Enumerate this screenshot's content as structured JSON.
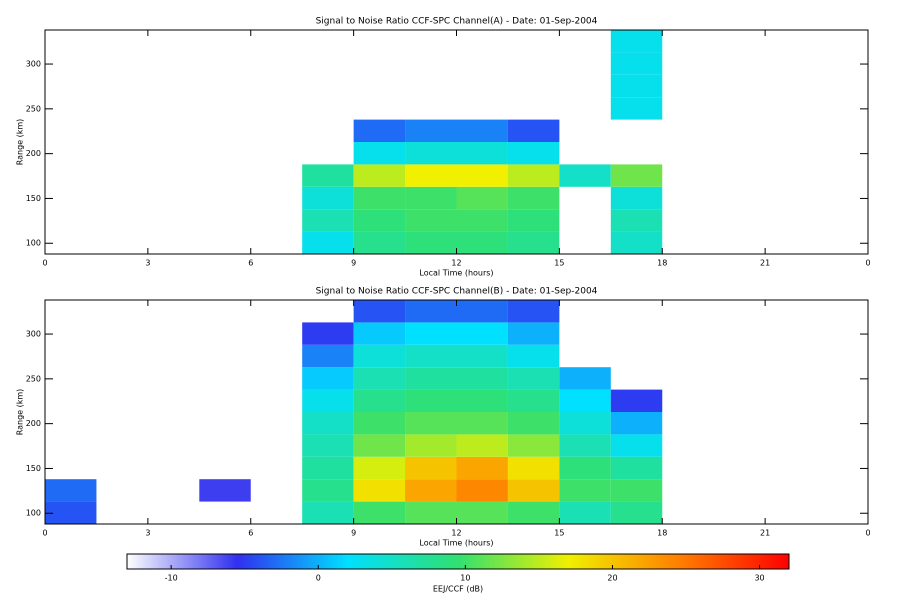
{
  "chart_data": [
    {
      "type": "heatmap",
      "title": "Signal to Noise Ratio CCF-SPC Channel(A) - Date: 01-Sep-2004",
      "xlabel": "Local Time (hours)",
      "ylabel": "Range (km)",
      "xlim": [
        0,
        24
      ],
      "ylim": [
        88,
        338
      ],
      "xticks": [
        0,
        3,
        6,
        9,
        12,
        15,
        18,
        21,
        {
          "value": 24,
          "label": "0"
        }
      ],
      "yticks": [
        100,
        150,
        200,
        250,
        300
      ],
      "xbins": [
        0,
        1.5,
        3,
        4.5,
        6,
        7.5,
        9,
        10.5,
        12,
        13.5,
        15,
        16.5,
        18,
        19.5,
        21,
        22.5,
        24
      ],
      "ybins": [
        88,
        113,
        138,
        163,
        188,
        213,
        238,
        263,
        288,
        313,
        338
      ],
      "z": [
        [
          null,
          null,
          null,
          null,
          null,
          3,
          8,
          9,
          9,
          8,
          null,
          5,
          null,
          null,
          null,
          null
        ],
        [
          null,
          null,
          null,
          null,
          null,
          6,
          9,
          10,
          10,
          9,
          null,
          6,
          null,
          null,
          null,
          null
        ],
        [
          null,
          null,
          null,
          null,
          null,
          4,
          10,
          10,
          11,
          10,
          null,
          4,
          null,
          null,
          null,
          null
        ],
        [
          null,
          null,
          null,
          null,
          null,
          7,
          15,
          17,
          17,
          15,
          5,
          12,
          null,
          null,
          null,
          null
        ],
        [
          null,
          null,
          null,
          null,
          null,
          null,
          3,
          4,
          4,
          3,
          null,
          null,
          null,
          null,
          null,
          null
        ],
        [
          null,
          null,
          null,
          null,
          null,
          null,
          -3,
          -2,
          -2,
          -4,
          null,
          null,
          null,
          null,
          null,
          null
        ],
        [
          null,
          null,
          null,
          null,
          null,
          null,
          null,
          null,
          null,
          null,
          null,
          3,
          null,
          null,
          null,
          null
        ],
        [
          null,
          null,
          null,
          null,
          null,
          null,
          null,
          null,
          null,
          null,
          null,
          3,
          null,
          null,
          null,
          null
        ],
        [
          null,
          null,
          null,
          null,
          null,
          null,
          null,
          null,
          null,
          null,
          null,
          3,
          null,
          null,
          null,
          null
        ],
        [
          null,
          null,
          null,
          null,
          null,
          null,
          null,
          null,
          null,
          null,
          null,
          3,
          null,
          null,
          null,
          null
        ]
      ]
    },
    {
      "type": "heatmap",
      "title": "Signal to Noise Ratio CCF-SPC Channel(B) - Date: 01-Sep-2004",
      "xlabel": "Local Time (hours)",
      "ylabel": "Range (km)",
      "xlim": [
        0,
        24
      ],
      "ylim": [
        88,
        338
      ],
      "xticks": [
        0,
        3,
        6,
        9,
        12,
        15,
        18,
        21,
        {
          "value": 24,
          "label": "0"
        }
      ],
      "yticks": [
        100,
        150,
        200,
        250,
        300
      ],
      "xbins": [
        0,
        1.5,
        3,
        4.5,
        6,
        7.5,
        9,
        10.5,
        12,
        13.5,
        15,
        16.5,
        18,
        19.5,
        21,
        22.5,
        24
      ],
      "ybins": [
        88,
        113,
        138,
        163,
        188,
        213,
        238,
        263,
        288,
        313,
        338
      ],
      "z": [
        [
          -4,
          null,
          null,
          null,
          null,
          6,
          10,
          11,
          11,
          10,
          6,
          8,
          null,
          null,
          null,
          null
        ],
        [
          -3,
          null,
          null,
          -6,
          null,
          8,
          18,
          22,
          24,
          20,
          10,
          10,
          null,
          null,
          null,
          null
        ],
        [
          null,
          null,
          null,
          null,
          null,
          7,
          16,
          20,
          22,
          18,
          9,
          7,
          null,
          null,
          null,
          null
        ],
        [
          null,
          null,
          null,
          null,
          null,
          6,
          12,
          14,
          15,
          13,
          6,
          3,
          null,
          null,
          null,
          null
        ],
        [
          null,
          null,
          null,
          null,
          null,
          5,
          10,
          11,
          11,
          10,
          4,
          0,
          null,
          null,
          null,
          null
        ],
        [
          null,
          null,
          null,
          null,
          null,
          3,
          8,
          9,
          9,
          8,
          2,
          -5,
          null,
          null,
          null,
          null
        ],
        [
          null,
          null,
          null,
          null,
          null,
          1,
          6,
          7,
          7,
          6,
          0,
          null,
          null,
          null,
          null,
          null
        ],
        [
          null,
          null,
          null,
          null,
          null,
          -2,
          4,
          5,
          5,
          3,
          null,
          null,
          null,
          null,
          null,
          null
        ],
        [
          null,
          null,
          null,
          null,
          null,
          -5,
          1,
          2,
          2,
          0,
          null,
          null,
          null,
          null,
          null,
          null
        ],
        [
          null,
          null,
          null,
          null,
          null,
          null,
          -4,
          -3,
          -3,
          -4,
          null,
          null,
          null,
          null,
          null,
          null
        ]
      ]
    },
    {
      "type": "colorbar",
      "xlabel": "EEJ/CCF (dB)",
      "xlim": [
        -13,
        32
      ],
      "xticks": [
        -10,
        0,
        10,
        20,
        30
      ],
      "colors": [
        "#ffffff",
        "#3030f0",
        "#00e0ff",
        "#30e070",
        "#f0f000",
        "#ff8000",
        "#ff0000"
      ]
    }
  ]
}
